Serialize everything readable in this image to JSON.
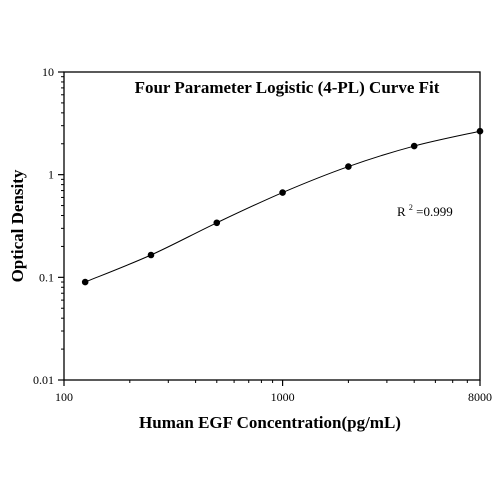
{
  "chart_data": {
    "type": "scatter",
    "title": "Four Parameter Logistic (4-PL) Curve Fit",
    "xlabel": "Human EGF Concentration(pg/mL)",
    "ylabel": "Optical Density",
    "x_scale": "log",
    "y_scale": "log",
    "xlim": [
      100,
      8000
    ],
    "ylim": [
      0.01,
      10
    ],
    "x_ticks": [
      {
        "value": 100,
        "label": "100"
      },
      {
        "value": 1000,
        "label": "1000"
      },
      {
        "value": 8000,
        "label": "8000"
      }
    ],
    "y_ticks": [
      {
        "value": 10,
        "label": "10"
      },
      {
        "value": 1,
        "label": "1"
      },
      {
        "value": 0.1,
        "label": "0.1"
      },
      {
        "value": 0.01,
        "label": "0.01"
      }
    ],
    "grid": false,
    "points": [
      {
        "x": 125,
        "y": 0.09
      },
      {
        "x": 250,
        "y": 0.165
      },
      {
        "x": 500,
        "y": 0.34
      },
      {
        "x": 1000,
        "y": 0.67
      },
      {
        "x": 2000,
        "y": 1.2
      },
      {
        "x": 4000,
        "y": 1.9
      },
      {
        "x": 8000,
        "y": 2.65
      }
    ],
    "fit_curve": true,
    "annotation": {
      "prefix": "R",
      "sup": "2",
      "value": "=0.999"
    }
  },
  "colors": {
    "marker": "#000000",
    "line": "#000000",
    "axis": "#000000",
    "background": "#ffffff"
  }
}
